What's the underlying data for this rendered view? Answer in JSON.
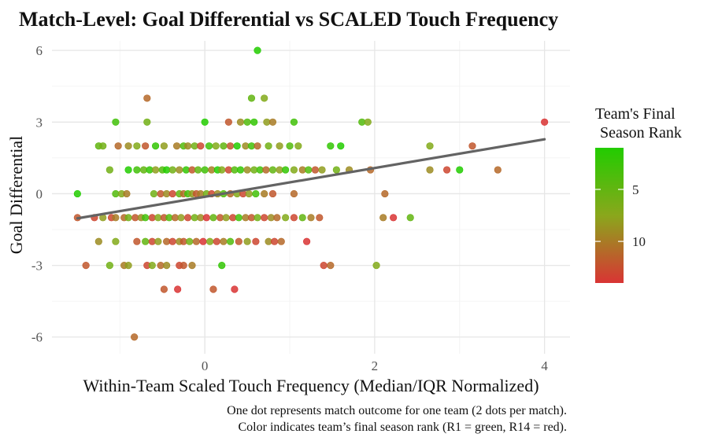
{
  "chart_data": {
    "type": "scatter",
    "title": "Match-Level: Goal Differential vs SCALED Touch Frequency",
    "xlabel": "Within-Team Scaled Touch Frequency (Median/IQR Normalized)",
    "ylabel": "Goal Differential",
    "xlim": [
      -1.8,
      4.3
    ],
    "ylim": [
      -6.7,
      6.4
    ],
    "x_ticks": [
      0,
      2,
      4
    ],
    "y_ticks": [
      -6,
      -3,
      0,
      3,
      6
    ],
    "grid": true,
    "legend": {
      "title_line1": "Team's Final",
      "title_line2": "Season Rank",
      "placement": "right",
      "ticks": [
        5,
        10
      ],
      "range": [
        1,
        14
      ],
      "low_color": "#22cc00",
      "high_color": "#d93434"
    },
    "trend_line": {
      "x": [
        -1.5,
        4.0
      ],
      "y": [
        -1.03,
        2.28
      ]
    },
    "caption_line1": "One dot represents match outcome for one team (2 dots per match).",
    "caption_line2": "Color indicates team’s final season rank (R1 = green, R14 = red).",
    "points": [
      [
        0.62,
        6,
        1
      ],
      [
        -0.68,
        4,
        11
      ],
      [
        0.55,
        4,
        5
      ],
      [
        0.7,
        4,
        7
      ],
      [
        -1.05,
        3,
        3
      ],
      [
        -0.68,
        3,
        6
      ],
      [
        0.0,
        3,
        1
      ],
      [
        0.28,
        3,
        12
      ],
      [
        0.42,
        3,
        9
      ],
      [
        0.5,
        3,
        4
      ],
      [
        0.58,
        3,
        2
      ],
      [
        0.73,
        3,
        8
      ],
      [
        0.8,
        3,
        10
      ],
      [
        1.05,
        3,
        3
      ],
      [
        1.85,
        3,
        4
      ],
      [
        1.92,
        3,
        7
      ],
      [
        4.0,
        3,
        14
      ],
      [
        -1.25,
        2,
        5
      ],
      [
        -1.2,
        2,
        6
      ],
      [
        -1.02,
        2,
        11
      ],
      [
        -0.9,
        2,
        9
      ],
      [
        -0.8,
        2,
        7
      ],
      [
        -0.7,
        2,
        12
      ],
      [
        -0.58,
        2,
        2
      ],
      [
        -0.48,
        2,
        8
      ],
      [
        -0.33,
        2,
        10
      ],
      [
        -0.25,
        2,
        4
      ],
      [
        -0.2,
        2,
        9
      ],
      [
        -0.12,
        2,
        6
      ],
      [
        -0.05,
        2,
        13
      ],
      [
        0.05,
        2,
        3
      ],
      [
        0.13,
        2,
        7
      ],
      [
        0.22,
        2,
        5
      ],
      [
        0.3,
        2,
        12
      ],
      [
        0.38,
        2,
        1
      ],
      [
        0.48,
        2,
        9
      ],
      [
        0.55,
        2,
        3
      ],
      [
        0.62,
        2,
        11
      ],
      [
        0.75,
        2,
        6
      ],
      [
        0.88,
        2,
        8
      ],
      [
        1.0,
        2,
        4
      ],
      [
        1.1,
        2,
        7
      ],
      [
        1.48,
        2,
        2
      ],
      [
        1.6,
        2,
        1
      ],
      [
        2.65,
        2,
        7
      ],
      [
        3.15,
        2,
        12
      ],
      [
        -1.12,
        1,
        6
      ],
      [
        -0.9,
        1,
        1
      ],
      [
        -0.8,
        1,
        3
      ],
      [
        -0.72,
        1,
        5
      ],
      [
        -0.65,
        1,
        2
      ],
      [
        -0.58,
        1,
        8
      ],
      [
        -0.5,
        1,
        4
      ],
      [
        -0.45,
        1,
        1
      ],
      [
        -0.38,
        1,
        6
      ],
      [
        -0.3,
        1,
        9
      ],
      [
        -0.22,
        1,
        2
      ],
      [
        -0.15,
        1,
        12
      ],
      [
        -0.08,
        1,
        5
      ],
      [
        0.0,
        1,
        3
      ],
      [
        0.08,
        1,
        10
      ],
      [
        0.15,
        1,
        1
      ],
      [
        0.2,
        1,
        7
      ],
      [
        0.28,
        1,
        13
      ],
      [
        0.35,
        1,
        4
      ],
      [
        0.42,
        1,
        2
      ],
      [
        0.5,
        1,
        9
      ],
      [
        0.58,
        1,
        6
      ],
      [
        0.65,
        1,
        3
      ],
      [
        0.72,
        1,
        11
      ],
      [
        0.8,
        1,
        5
      ],
      [
        0.88,
        1,
        8
      ],
      [
        0.95,
        1,
        2
      ],
      [
        1.05,
        1,
        7
      ],
      [
        1.15,
        1,
        10
      ],
      [
        1.22,
        1,
        4
      ],
      [
        1.3,
        1,
        12
      ],
      [
        1.38,
        1,
        8
      ],
      [
        1.55,
        1,
        6
      ],
      [
        1.7,
        1,
        9
      ],
      [
        1.95,
        1,
        11
      ],
      [
        2.65,
        1,
        9
      ],
      [
        2.85,
        1,
        13
      ],
      [
        3.0,
        1,
        1
      ],
      [
        3.45,
        1,
        11
      ],
      [
        -1.5,
        0,
        1
      ],
      [
        -1.05,
        0,
        4
      ],
      [
        -0.98,
        0,
        7
      ],
      [
        -0.92,
        0,
        10
      ],
      [
        -0.6,
        0,
        6
      ],
      [
        -0.52,
        0,
        12
      ],
      [
        -0.45,
        0,
        9
      ],
      [
        -0.38,
        0,
        13
      ],
      [
        -0.3,
        0,
        5
      ],
      [
        -0.25,
        0,
        11
      ],
      [
        -0.2,
        0,
        3
      ],
      [
        -0.15,
        0,
        8
      ],
      [
        -0.1,
        0,
        12
      ],
      [
        -0.05,
        0,
        10
      ],
      [
        0.02,
        0,
        6
      ],
      [
        0.08,
        0,
        13
      ],
      [
        0.15,
        0,
        9
      ],
      [
        0.22,
        0,
        4
      ],
      [
        0.3,
        0,
        11
      ],
      [
        0.38,
        0,
        7
      ],
      [
        0.45,
        0,
        13
      ],
      [
        0.52,
        0,
        8
      ],
      [
        0.6,
        0,
        3
      ],
      [
        0.7,
        0,
        10
      ],
      [
        0.8,
        0,
        12
      ],
      [
        1.05,
        0,
        11
      ],
      [
        2.12,
        0,
        11
      ],
      [
        -1.5,
        -1,
        12
      ],
      [
        -1.3,
        -1,
        13
      ],
      [
        -1.2,
        -1,
        8
      ],
      [
        -1.1,
        -1,
        13
      ],
      [
        -1.05,
        -1,
        10
      ],
      [
        -0.95,
        -1,
        11
      ],
      [
        -0.9,
        -1,
        6
      ],
      [
        -0.82,
        -1,
        12
      ],
      [
        -0.75,
        -1,
        9
      ],
      [
        -0.7,
        -1,
        3
      ],
      [
        -0.62,
        -1,
        13
      ],
      [
        -0.55,
        -1,
        7
      ],
      [
        -0.48,
        -1,
        12
      ],
      [
        -0.42,
        -1,
        4
      ],
      [
        -0.35,
        -1,
        11
      ],
      [
        -0.28,
        -1,
        8
      ],
      [
        -0.2,
        -1,
        13
      ],
      [
        -0.12,
        -1,
        6
      ],
      [
        -0.05,
        -1,
        9
      ],
      [
        0.02,
        -1,
        14
      ],
      [
        0.1,
        -1,
        5
      ],
      [
        0.18,
        -1,
        12
      ],
      [
        0.25,
        -1,
        8
      ],
      [
        0.33,
        -1,
        13
      ],
      [
        0.4,
        -1,
        3
      ],
      [
        0.48,
        -1,
        10
      ],
      [
        0.55,
        -1,
        12
      ],
      [
        0.62,
        -1,
        6
      ],
      [
        0.7,
        -1,
        13
      ],
      [
        0.78,
        -1,
        9
      ],
      [
        0.85,
        -1,
        11
      ],
      [
        0.95,
        -1,
        7
      ],
      [
        1.05,
        -1,
        13
      ],
      [
        1.15,
        -1,
        5
      ],
      [
        1.25,
        -1,
        10
      ],
      [
        1.35,
        -1,
        12
      ],
      [
        2.1,
        -1,
        10
      ],
      [
        2.22,
        -1,
        14
      ],
      [
        2.42,
        -1,
        5
      ],
      [
        -1.25,
        -2,
        9
      ],
      [
        -1.05,
        -2,
        7
      ],
      [
        -0.8,
        -2,
        12
      ],
      [
        -0.7,
        -2,
        5
      ],
      [
        -0.62,
        -2,
        13
      ],
      [
        -0.55,
        -2,
        8
      ],
      [
        -0.45,
        -2,
        11
      ],
      [
        -0.38,
        -2,
        13
      ],
      [
        -0.3,
        -2,
        9
      ],
      [
        -0.25,
        -2,
        12
      ],
      [
        -0.18,
        -2,
        6
      ],
      [
        -0.1,
        -2,
        11
      ],
      [
        -0.02,
        -2,
        14
      ],
      [
        0.06,
        -2,
        7
      ],
      [
        0.14,
        -2,
        13
      ],
      [
        0.22,
        -2,
        10
      ],
      [
        0.3,
        -2,
        4
      ],
      [
        0.4,
        -2,
        12
      ],
      [
        0.5,
        -2,
        8
      ],
      [
        0.6,
        -2,
        13
      ],
      [
        0.75,
        -2,
        9
      ],
      [
        0.82,
        -2,
        13
      ],
      [
        0.9,
        -2,
        11
      ],
      [
        1.2,
        -2,
        14
      ],
      [
        -1.4,
        -3,
        12
      ],
      [
        -1.12,
        -3,
        6
      ],
      [
        -0.95,
        -3,
        10
      ],
      [
        -0.9,
        -3,
        8
      ],
      [
        -0.68,
        -3,
        13
      ],
      [
        -0.62,
        -3,
        7
      ],
      [
        -0.52,
        -3,
        11
      ],
      [
        -0.45,
        -3,
        9
      ],
      [
        -0.3,
        -3,
        13
      ],
      [
        -0.25,
        -3,
        12
      ],
      [
        -0.15,
        -3,
        10
      ],
      [
        0.2,
        -3,
        2
      ],
      [
        1.4,
        -3,
        13
      ],
      [
        1.48,
        -3,
        11
      ],
      [
        2.02,
        -3,
        7
      ],
      [
        -0.48,
        -4,
        12
      ],
      [
        -0.32,
        -4,
        14
      ],
      [
        0.1,
        -4,
        12
      ],
      [
        0.35,
        -4,
        14
      ],
      [
        -0.83,
        -6,
        11
      ]
    ]
  }
}
